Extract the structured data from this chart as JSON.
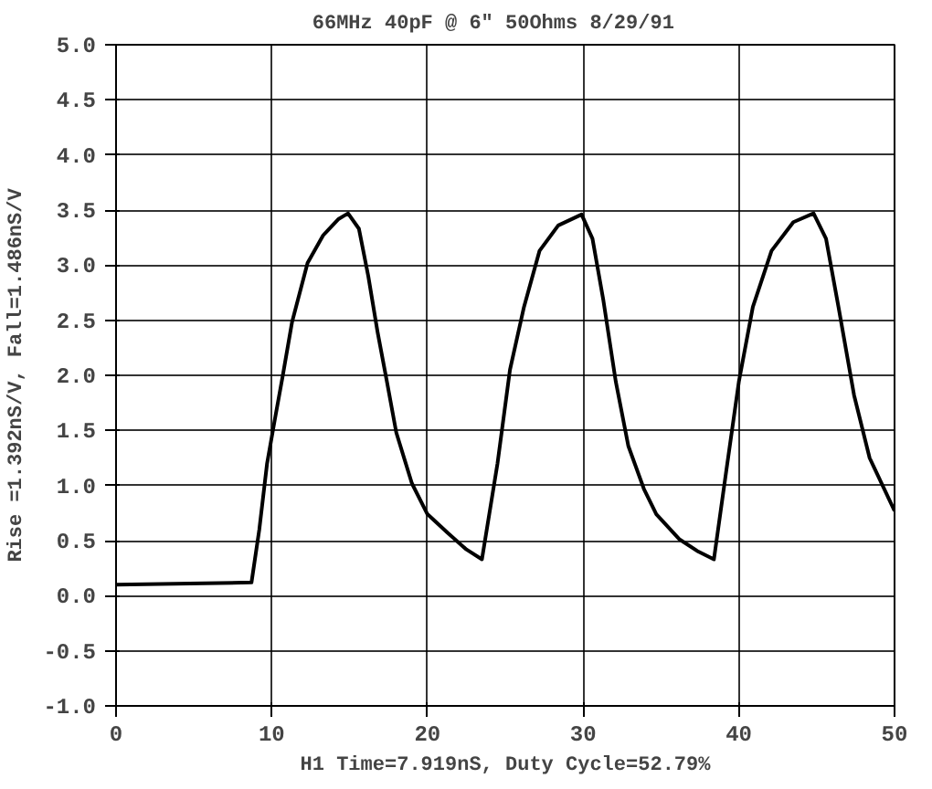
{
  "chart_data": {
    "type": "line",
    "title": "66MHz   40pF @ 6\" 50Ohms 8/29/91",
    "xlabel": "H1 Time=7.919nS, Duty Cycle=52.79%",
    "ylabel": "Rise =1.392nS/V, Fall=1.486nS/V",
    "x": [
      0,
      8.7,
      9.2,
      9.7,
      10.2,
      10.7,
      11.3,
      12.3,
      13.3,
      14.3,
      14.9,
      15.6,
      16.2,
      16.8,
      17.4,
      18.0,
      19.0,
      20.0,
      21.3,
      22.5,
      23.5,
      24.5,
      25.3,
      26.2,
      27.2,
      28.4,
      29.9,
      30.6,
      31.3,
      32.1,
      32.9,
      33.9,
      34.7,
      36.2,
      37.4,
      38.4,
      39.2,
      40.0,
      40.9,
      42.1,
      43.5,
      44.8,
      45.6,
      46.4,
      47.4,
      48.4,
      50.0
    ],
    "series": [
      {
        "color": "#000000",
        "values": [
          0.1,
          0.12,
          0.6,
          1.2,
          1.6,
          1.99,
          2.48,
          3.02,
          3.27,
          3.42,
          3.47,
          3.33,
          2.9,
          2.39,
          1.94,
          1.48,
          1.02,
          0.74,
          0.57,
          0.42,
          0.33,
          1.2,
          2.05,
          2.62,
          3.13,
          3.36,
          3.46,
          3.24,
          2.68,
          1.94,
          1.36,
          0.97,
          0.74,
          0.51,
          0.4,
          0.33,
          1.14,
          1.94,
          2.62,
          3.13,
          3.39,
          3.47,
          3.24,
          2.62,
          1.82,
          1.25,
          0.77
        ]
      }
    ],
    "xlim": [
      0,
      50
    ],
    "xticks": [
      0,
      10,
      20,
      30,
      40,
      50
    ],
    "ylim": [
      -1,
      5
    ],
    "yticks": [
      {
        "value": -1,
        "label": "-1.0"
      },
      {
        "value": -0.5,
        "label": "-0.5"
      },
      {
        "value": 0,
        "label": "0.0"
      },
      {
        "value": 0.5,
        "label": "0.5"
      },
      {
        "value": 1,
        "label": "1.0"
      },
      {
        "value": 1.5,
        "label": "1.5"
      },
      {
        "value": 2,
        "label": "2.0"
      },
      {
        "value": 2.5,
        "label": "2.5"
      },
      {
        "value": 3,
        "label": "3.0"
      },
      {
        "value": 3.5,
        "label": "3.5"
      },
      {
        "value": 4,
        "label": "4.0"
      },
      {
        "value": 4.5,
        "label": "4.5"
      },
      {
        "value": 5,
        "label": "5.0"
      }
    ],
    "grid": true,
    "line_style": "solid",
    "marker": "none"
  }
}
